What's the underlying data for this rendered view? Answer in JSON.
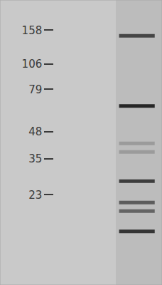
{
  "chart_data": {
    "type": "western_blot",
    "log": "y",
    "ylim": [
      8,
      225
    ],
    "yticks": [
      158,
      106,
      79,
      48,
      35,
      23
    ],
    "tick_labels": "y",
    "lanes": [
      {
        "bands": []
      },
      {
        "bands": [
          {
            "kda": 148,
            "intensity": 0.75
          },
          {
            "kda": 65,
            "intensity": 0.95
          },
          {
            "kda": 42,
            "intensity": 0.2
          },
          {
            "kda": 38,
            "intensity": 0.2
          },
          {
            "kda": 27,
            "intensity": 0.8
          },
          {
            "kda": 21,
            "intensity": 0.6
          },
          {
            "kda": 19,
            "intensity": 0.55
          },
          {
            "kda": 15,
            "intensity": 0.85
          }
        ]
      }
    ]
  }
}
